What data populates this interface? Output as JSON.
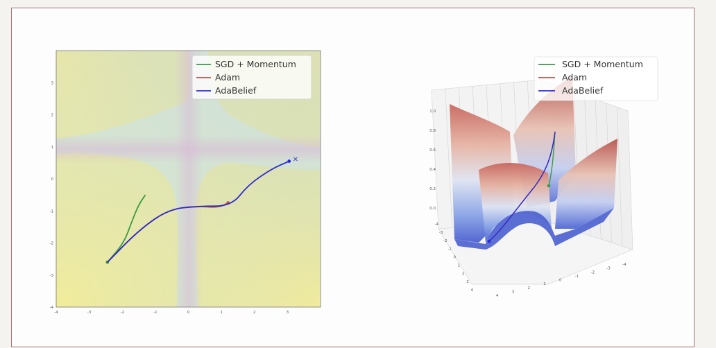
{
  "colors": {
    "sgd": "#3a9a44",
    "adam": "#c0504a",
    "adabelief": "#2a2ad0",
    "frame": "#a56f76"
  },
  "legend": {
    "sgd": "SGD + Momentum",
    "adam": "Adam",
    "adabelief": "AdaBelief"
  },
  "chart_data": [
    {
      "type": "line",
      "subtype": "contour-trajectories",
      "xlim": [
        -4,
        4
      ],
      "ylim": [
        -4,
        4
      ],
      "x_ticks": [
        "-4",
        "-3",
        "-2",
        "-1",
        "0",
        "1",
        "2",
        "3"
      ],
      "y_ticks": [
        "3",
        "2",
        "1",
        "0",
        "-1",
        "-2",
        "-3",
        "-4"
      ],
      "legend_position": "top-right",
      "series": [
        {
          "name": "SGD + Momentum",
          "points": [
            [
              -1.3,
              -0.5
            ],
            [
              -1.5,
              -0.8
            ],
            [
              -1.7,
              -1.3
            ],
            [
              -1.95,
              -2.0
            ],
            [
              -2.45,
              -2.6
            ]
          ]
        },
        {
          "name": "Adam",
          "points": [
            [
              -2.45,
              -2.6
            ],
            [
              -1.5,
              -1.6
            ],
            [
              -0.6,
              -0.95
            ],
            [
              0.3,
              -0.85
            ],
            [
              0.9,
              -0.9
            ],
            [
              1.2,
              -0.75
            ]
          ]
        },
        {
          "name": "AdaBelief",
          "points": [
            [
              -2.45,
              -2.6
            ],
            [
              -1.5,
              -1.6
            ],
            [
              -0.6,
              -0.95
            ],
            [
              0.3,
              -0.85
            ],
            [
              1.3,
              -0.85
            ],
            [
              1.8,
              -0.2
            ],
            [
              2.5,
              0.3
            ],
            [
              3.05,
              0.55
            ]
          ]
        }
      ]
    },
    {
      "type": "surface3d",
      "zlim": [
        0.0,
        1.0
      ],
      "z_ticks": [
        "1.0",
        "0.8",
        "0.6",
        "0.4",
        "0.2",
        "0.0"
      ],
      "x_ticks": [
        "-4",
        "-3",
        "-2",
        "-1",
        "0",
        "1",
        "2",
        "3",
        "4"
      ],
      "y_ticks": [
        "4",
        "3",
        "2",
        "1",
        "0",
        "-1",
        "-2",
        "-3",
        "-4"
      ],
      "legend_position": "top-right",
      "series": [
        {
          "name": "SGD + Momentum"
        },
        {
          "name": "Adam"
        },
        {
          "name": "AdaBelief"
        }
      ]
    }
  ]
}
